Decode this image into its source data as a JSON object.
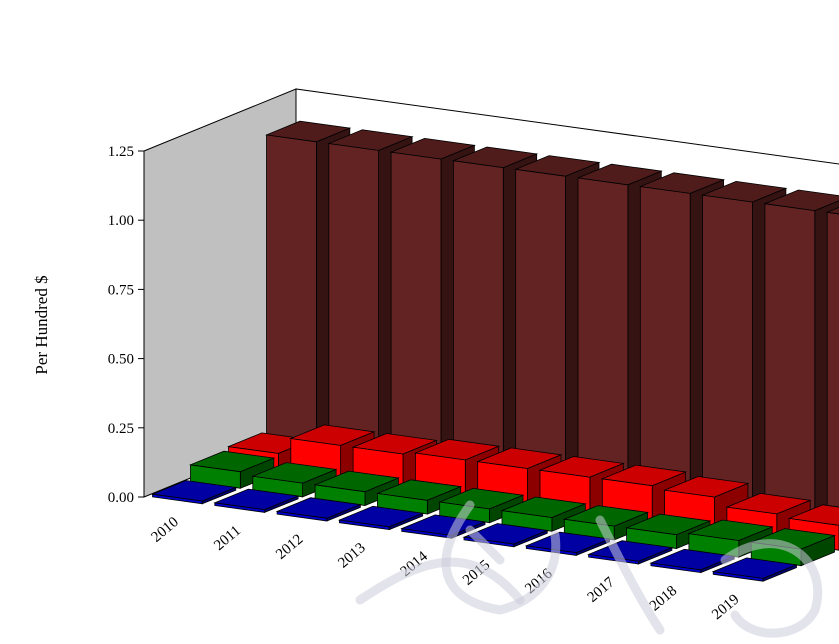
{
  "chart_data": {
    "type": "bar",
    "style": "3d-grouped-depth",
    "ylabel": "Per Hundred $",
    "xlabel": "",
    "categories": [
      "2010",
      "2011",
      "2012",
      "2013",
      "2014",
      "2015",
      "2016",
      "2017",
      "2018",
      "2019"
    ],
    "ylim": [
      0,
      1.25
    ],
    "yticks": [
      "0.00",
      "0.25",
      "0.50",
      "0.75",
      "1.00",
      "1.25"
    ],
    "grid": false,
    "series": [
      {
        "color": "#0000cc",
        "values": [
          0.01,
          0.01,
          0.01,
          0.01,
          0.01,
          0.01,
          0.01,
          0.01,
          0.01,
          0.01
        ]
      },
      {
        "color": "#008000",
        "values": [
          0.06,
          0.05,
          0.05,
          0.05,
          0.05,
          0.05,
          0.05,
          0.05,
          0.06,
          0.06
        ]
      },
      {
        "color": "#ff0000",
        "values": [
          0.07,
          0.13,
          0.13,
          0.14,
          0.14,
          0.14,
          0.14,
          0.13,
          0.1,
          0.09
        ]
      },
      {
        "color": "#632322",
        "values": [
          1.14,
          1.14,
          1.14,
          1.14,
          1.14,
          1.14,
          1.14,
          1.14,
          1.14,
          1.14
        ]
      }
    ]
  },
  "watermark": {
    "color": "#ccccdd"
  }
}
